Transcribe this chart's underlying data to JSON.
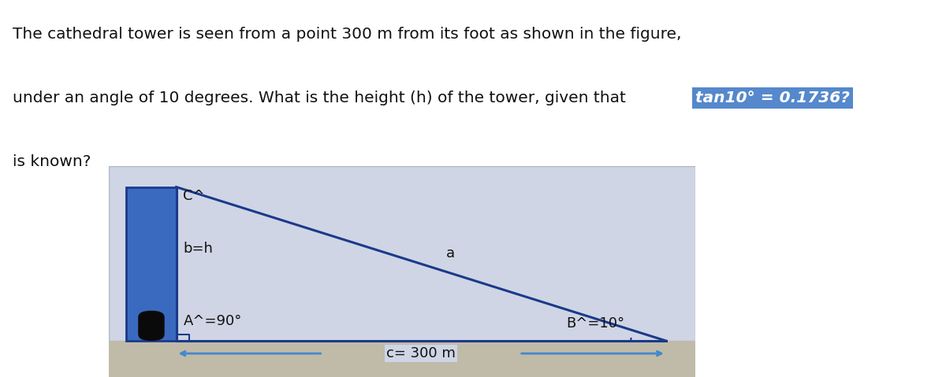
{
  "title_line1": "The cathedral tower is seen from a point 300 m from its foot as shown in the figure,",
  "title_line2_pre": "under an angle of 10 degrees. What is the height (h) of the tower, given that ",
  "title_line2_highlight": "tan10° = 0.1736?",
  "title_line3": " is known?",
  "highlight_bg": "#5588cc",
  "highlight_fg": "#ffffff",
  "diagram_bg": "#d0d5e5",
  "diagram_border": "#b0b5c5",
  "tower_blue": "#3a6abf",
  "tower_dark_blue": "#1a3a8a",
  "arch_color": "#0a0a0a",
  "triangle_color": "#1a3a8a",
  "arrow_color": "#4488cc",
  "bottom_strip_color": "#c0bba8",
  "text_color": "#111111",
  "label_C": "C^",
  "label_bh": "b=h",
  "label_A": "A^=90°",
  "label_B": "B^=10°",
  "label_a": "a",
  "label_c": "c= 300 m",
  "font_size_title": 14.5,
  "font_size_diagram": 13
}
